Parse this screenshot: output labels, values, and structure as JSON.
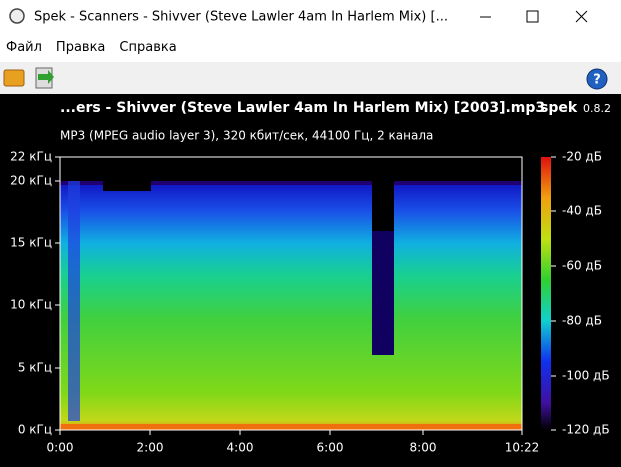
{
  "window": {
    "title": "Spek - Scanners - Shivver (Steve Lawler 4am In Harlem Mix) [..."
  },
  "menu": [
    "Файл",
    "Правка",
    "Справка"
  ],
  "header": {
    "file": "...ers - Shivver (Steve Lawler 4am In Harlem Mix) [2003].mp3",
    "app": "spek",
    "version": "0.8.2",
    "info": "MP3 (MPEG audio layer 3), 320 кбит/сек, 44100 Гц, 2 канала"
  },
  "freq_labels": [
    "22 кГц",
    "20 кГц",
    "15 кГц",
    "10 кГц",
    "5 кГц",
    "0 кГц"
  ],
  "time_labels": [
    "0:00",
    "2:00",
    "4:00",
    "6:00",
    "8:00",
    "10:22"
  ],
  "level_labels": [
    "-20 дБ",
    "-40 дБ",
    "-60 дБ",
    "-80 дБ",
    "-100 дБ",
    "-120 дБ"
  ]
}
